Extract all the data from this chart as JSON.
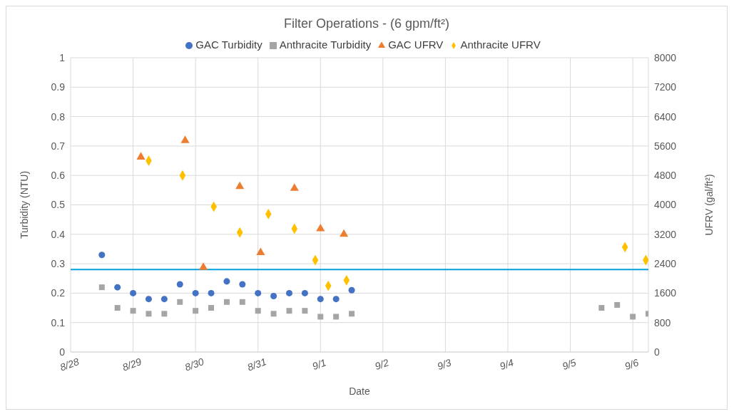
{
  "chart_data": {
    "type": "scatter",
    "title": "Filter Operations - (6 gpm/ft²)",
    "xlabel": "Date",
    "ylabel": "Turbidity (NTU)",
    "y2label": "UFRV (gal/ft²)",
    "xlim": [
      "--08-28",
      "--09-06T06:00"
    ],
    "xticks": [
      {
        "value": "--08-28",
        "label": "8/28"
      },
      {
        "value": "--08-29",
        "label": "8/29"
      },
      {
        "value": "--08-30",
        "label": "8/30"
      },
      {
        "value": "--08-31",
        "label": "8/31"
      },
      {
        "value": "--09-01",
        "label": "9/1"
      },
      {
        "value": "--09-02",
        "label": "9/2"
      },
      {
        "value": "--09-03",
        "label": "9/3"
      },
      {
        "value": "--09-04",
        "label": "9/4"
      },
      {
        "value": "--09-05",
        "label": "9/5"
      },
      {
        "value": "--09-06",
        "label": "9/6"
      }
    ],
    "ylim": [
      0,
      1
    ],
    "yticks": [
      0,
      0.1,
      0.2,
      0.3,
      0.4,
      0.5,
      0.6,
      0.7,
      0.8,
      0.9,
      1
    ],
    "y2lim": [
      0,
      8000
    ],
    "y2ticks": [
      0,
      800,
      1600,
      2400,
      3200,
      4000,
      4800,
      5600,
      6400,
      7200,
      8000
    ],
    "grid": true,
    "legend": "top",
    "series": [
      {
        "name": "GAC Turbidity",
        "color": "#4472c4",
        "marker": "circle",
        "x": [
          "--08-28T12:00",
          "--08-28T18:00",
          "--08-29T00:00",
          "--08-29T06:00",
          "--08-29T12:00",
          "--08-29T18:00",
          "--08-30T00:00",
          "--08-30T06:00",
          "--08-30T12:00",
          "--08-30T18:00",
          "--08-31T00:00",
          "--08-31T06:00",
          "--08-31T12:00",
          "--08-31T18:00",
          "--09-01T00:00",
          "--09-01T06:00",
          "--09-01T12:00"
        ],
        "values": [
          0.33,
          0.22,
          0.2,
          0.18,
          0.18,
          0.23,
          0.2,
          0.2,
          0.24,
          0.23,
          0.2,
          0.19,
          0.2,
          0.2,
          0.18,
          0.18,
          0.21
        ]
      },
      {
        "name": "Anthracite Turbidity",
        "color": "#a5a5a5",
        "marker": "square",
        "x": [
          "--08-28T12:00",
          "--08-28T18:00",
          "--08-29T00:00",
          "--08-29T06:00",
          "--08-29T12:00",
          "--08-29T18:00",
          "--08-30T00:00",
          "--08-30T06:00",
          "--08-30T12:00",
          "--08-30T18:00",
          "--08-31T00:00",
          "--08-31T06:00",
          "--08-31T12:00",
          "--08-31T18:00",
          "--09-01T00:00",
          "--09-01T06:00",
          "--09-01T12:00",
          "--09-05T12:00",
          "--09-05T18:00",
          "--09-06T00:00",
          "--09-06T06:00"
        ],
        "values": [
          0.22,
          0.15,
          0.14,
          0.13,
          0.13,
          0.17,
          0.14,
          0.15,
          0.17,
          0.17,
          0.14,
          0.13,
          0.14,
          0.14,
          0.12,
          0.12,
          0.13,
          0.15,
          0.16,
          0.12,
          0.13
        ]
      },
      {
        "name": "GAC UFRV",
        "color": "#ed7d31",
        "marker": "triangle",
        "axis": "y2",
        "x": [
          "--08-29T03:00",
          "--08-29T20:00",
          "--08-30T03:00",
          "--08-30T17:00",
          "--08-31T01:00",
          "--08-31T14:00",
          "--09-01T00:00",
          "--09-01T09:00"
        ],
        "values": [
          5300,
          5750,
          2300,
          4500,
          2700,
          4450,
          3350,
          3200
        ]
      },
      {
        "name": "Anthracite UFRV",
        "color": "#ffc000",
        "marker": "diamond",
        "axis": "y2",
        "x": [
          "--08-29T06:00",
          "--08-29T19:00",
          "--08-30T07:00",
          "--08-30T17:00",
          "--08-31T04:00",
          "--08-31T14:00",
          "--08-31T22:00",
          "--09-01T03:00",
          "--09-01T10:00",
          "--09-05T21:00",
          "--09-06T05:00"
        ],
        "values": [
          5200,
          4800,
          3950,
          3250,
          3750,
          3350,
          2500,
          1800,
          1950,
          2850,
          2500
        ]
      }
    ],
    "ref_lines": [
      {
        "axis": "y",
        "value": 0.28,
        "color": "#00a0e0"
      }
    ]
  }
}
